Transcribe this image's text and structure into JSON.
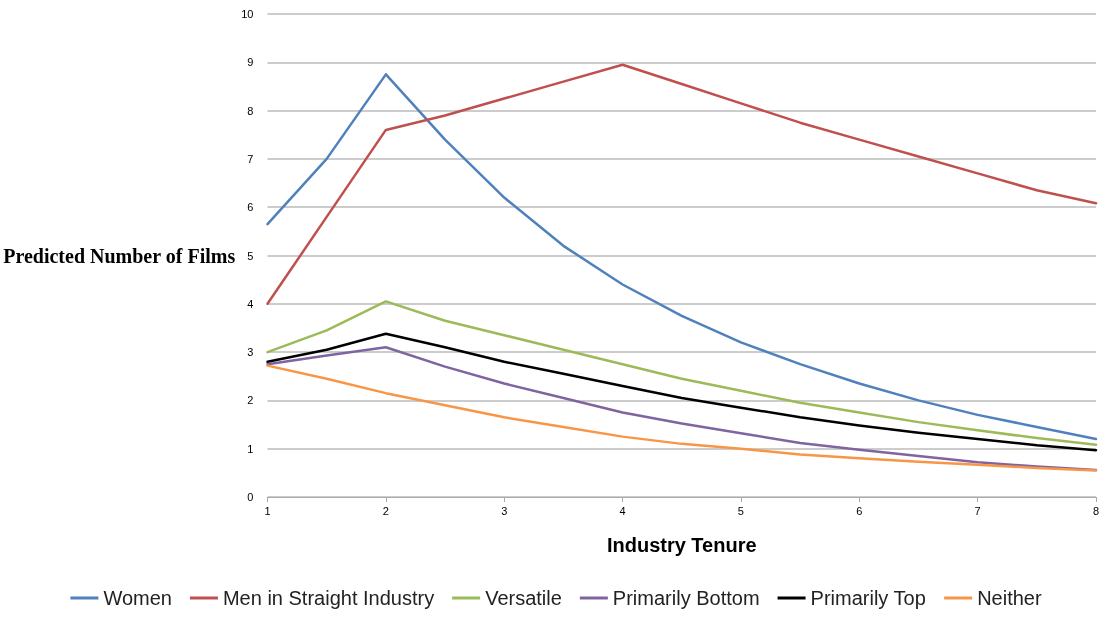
{
  "chart_data": {
    "type": "line",
    "xlabel": "Industry Tenure",
    "ylabel": "Predicted Number of Films",
    "x": [
      1,
      1.5,
      2,
      2.5,
      3,
      3.5,
      4,
      4.5,
      5,
      5.5,
      6,
      6.5,
      7,
      7.5,
      8
    ],
    "xlim": [
      1,
      8
    ],
    "xticks": [
      1,
      2,
      3,
      4,
      5,
      6,
      7,
      8
    ],
    "ylim": [
      0,
      10
    ],
    "yticks": [
      0,
      1,
      2,
      3,
      4,
      5,
      6,
      7,
      8,
      9,
      10
    ],
    "grid": "y",
    "legend": "bottom",
    "marker": "none",
    "line_style": "solid",
    "series": [
      {
        "name": "Women",
        "color": "#4f81bd",
        "values": [
          5.65,
          7.0,
          8.75,
          7.4,
          6.2,
          5.2,
          4.4,
          3.75,
          3.2,
          2.75,
          2.35,
          2.0,
          1.7,
          1.45,
          1.2
        ]
      },
      {
        "name": "Men in Straight Industry",
        "color": "#c0504d",
        "values": [
          4.0,
          5.8,
          7.6,
          7.9,
          8.25,
          8.6,
          8.95,
          8.55,
          8.15,
          7.75,
          7.4,
          7.05,
          6.7,
          6.35,
          6.08
        ]
      },
      {
        "name": "Versatile",
        "color": "#9bbb59",
        "values": [
          3.0,
          3.45,
          4.05,
          3.65,
          3.35,
          3.05,
          2.75,
          2.45,
          2.2,
          1.95,
          1.75,
          1.55,
          1.38,
          1.22,
          1.08
        ]
      },
      {
        "name": "Primarily Bottom",
        "color": "#8064a2",
        "values": [
          2.75,
          2.93,
          3.1,
          2.7,
          2.35,
          2.05,
          1.75,
          1.52,
          1.32,
          1.12,
          0.98,
          0.85,
          0.72,
          0.63,
          0.56
        ]
      },
      {
        "name": "Primarily Top",
        "color": "#000000",
        "values": [
          2.8,
          3.05,
          3.38,
          3.1,
          2.8,
          2.55,
          2.3,
          2.05,
          1.85,
          1.65,
          1.48,
          1.33,
          1.2,
          1.07,
          0.97
        ]
      },
      {
        "name": "Neither",
        "color": "#f79646",
        "values": [
          2.72,
          2.45,
          2.15,
          1.9,
          1.65,
          1.45,
          1.25,
          1.1,
          1.0,
          0.88,
          0.8,
          0.73,
          0.67,
          0.6,
          0.55
        ]
      }
    ]
  }
}
